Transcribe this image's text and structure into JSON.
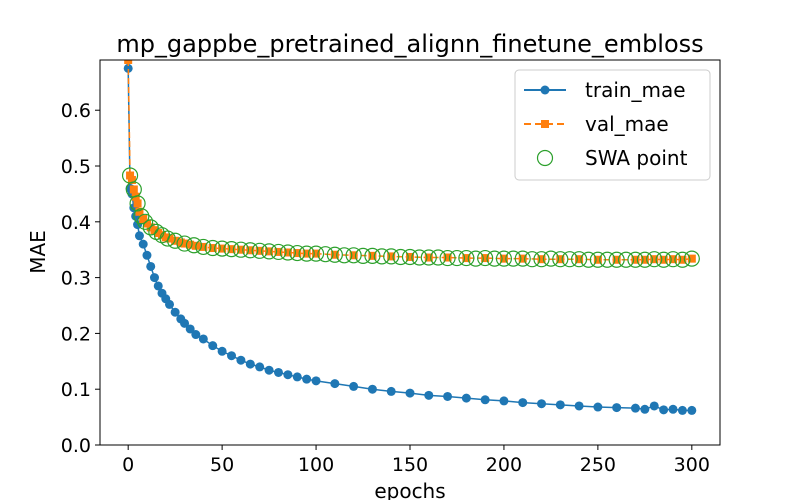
{
  "chart_data": {
    "type": "line",
    "title": "mp_gappbe_pretrained_alignn_finetune_embloss",
    "xlabel": "epochs",
    "ylabel": "MAE",
    "xlim": [
      -15,
      315
    ],
    "ylim": [
      0.0,
      0.69
    ],
    "xticks": [
      0,
      50,
      100,
      150,
      200,
      250,
      300
    ],
    "yticks": [
      0.0,
      0.1,
      0.2,
      0.3,
      0.4,
      0.5,
      0.6
    ],
    "grid": false,
    "legend_position": "top-right",
    "series": [
      {
        "name": "train_mae",
        "style": "solid line, circle markers",
        "color": "#1f77b4",
        "x": [
          0,
          1,
          2,
          3,
          4,
          5,
          6,
          8,
          10,
          12,
          14,
          16,
          18,
          20,
          22,
          25,
          28,
          30,
          33,
          36,
          40,
          45,
          50,
          55,
          60,
          65,
          70,
          75,
          80,
          85,
          90,
          95,
          100,
          110,
          120,
          130,
          140,
          150,
          160,
          170,
          180,
          190,
          200,
          210,
          220,
          230,
          240,
          250,
          260,
          270,
          275,
          280,
          285,
          290,
          295,
          300
        ],
        "values": [
          0.675,
          0.46,
          0.45,
          0.425,
          0.41,
          0.395,
          0.375,
          0.36,
          0.34,
          0.32,
          0.3,
          0.285,
          0.272,
          0.262,
          0.252,
          0.238,
          0.226,
          0.218,
          0.208,
          0.198,
          0.19,
          0.178,
          0.168,
          0.16,
          0.152,
          0.145,
          0.14,
          0.134,
          0.13,
          0.126,
          0.122,
          0.118,
          0.115,
          0.11,
          0.105,
          0.1,
          0.096,
          0.093,
          0.089,
          0.087,
          0.084,
          0.081,
          0.079,
          0.076,
          0.074,
          0.072,
          0.07,
          0.068,
          0.067,
          0.066,
          0.064,
          0.07,
          0.063,
          0.064,
          0.062,
          0.062
        ]
      },
      {
        "name": "val_mae",
        "style": "dashed line, square markers",
        "color": "#ff7f0e",
        "x": [
          0,
          1,
          2,
          3,
          4,
          5,
          6,
          8,
          10,
          12,
          14,
          16,
          18,
          20,
          22,
          25,
          28,
          30,
          33,
          36,
          40,
          45,
          50,
          55,
          60,
          65,
          70,
          75,
          80,
          85,
          90,
          95,
          100,
          110,
          120,
          130,
          140,
          150,
          160,
          170,
          180,
          190,
          200,
          210,
          220,
          230,
          240,
          250,
          260,
          270,
          275,
          280,
          285,
          290,
          295,
          300
        ],
        "values": [
          0.69,
          0.483,
          0.475,
          0.458,
          0.445,
          0.433,
          0.418,
          0.405,
          0.397,
          0.39,
          0.385,
          0.38,
          0.376,
          0.372,
          0.37,
          0.366,
          0.363,
          0.361,
          0.359,
          0.357,
          0.355,
          0.353,
          0.352,
          0.351,
          0.35,
          0.349,
          0.348,
          0.347,
          0.346,
          0.345,
          0.344,
          0.343,
          0.343,
          0.341,
          0.34,
          0.339,
          0.338,
          0.337,
          0.336,
          0.336,
          0.335,
          0.335,
          0.334,
          0.334,
          0.333,
          0.333,
          0.333,
          0.332,
          0.332,
          0.332,
          0.332,
          0.333,
          0.332,
          0.333,
          0.332,
          0.334
        ]
      },
      {
        "name": "SWA point",
        "style": "hollow circle markers",
        "color": "#2ca02c",
        "x": [
          1,
          3,
          5,
          7,
          9,
          12,
          15,
          18,
          21,
          25,
          30,
          35,
          40,
          45,
          50,
          55,
          60,
          65,
          70,
          75,
          80,
          85,
          90,
          95,
          100,
          105,
          110,
          115,
          120,
          125,
          130,
          135,
          140,
          145,
          150,
          155,
          160,
          165,
          170,
          175,
          180,
          185,
          190,
          195,
          200,
          205,
          210,
          215,
          220,
          225,
          230,
          235,
          240,
          245,
          250,
          255,
          260,
          265,
          270,
          275,
          280,
          285,
          290,
          295,
          300
        ],
        "values": [
          0.483,
          0.458,
          0.433,
          0.41,
          0.4,
          0.39,
          0.382,
          0.376,
          0.37,
          0.366,
          0.361,
          0.358,
          0.355,
          0.353,
          0.352,
          0.351,
          0.35,
          0.349,
          0.348,
          0.347,
          0.346,
          0.345,
          0.344,
          0.343,
          0.343,
          0.342,
          0.341,
          0.34,
          0.34,
          0.339,
          0.339,
          0.338,
          0.338,
          0.337,
          0.337,
          0.336,
          0.336,
          0.336,
          0.335,
          0.335,
          0.335,
          0.334,
          0.335,
          0.334,
          0.334,
          0.334,
          0.334,
          0.333,
          0.333,
          0.334,
          0.333,
          0.333,
          0.333,
          0.332,
          0.332,
          0.332,
          0.332,
          0.332,
          0.332,
          0.332,
          0.333,
          0.332,
          0.333,
          0.332,
          0.334
        ]
      }
    ]
  }
}
